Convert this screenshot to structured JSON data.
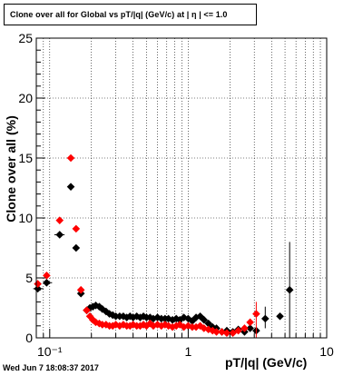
{
  "title": "Clone  over all for Global vs pT/|q| (GeV/c) at |  η | <= 1.0",
  "timestamp": "Wed Jun  7 18:08:37 2017",
  "colors": {
    "series_black": "#000000",
    "series_red": "#ff0000",
    "grid": "#000000"
  },
  "chart_data": {
    "type": "scatter",
    "title": "Clone  over all for Global vs pT/|q| (GeV/c) at |  η | <= 1.0",
    "xlabel": "pT/|q| (GeV/c)",
    "ylabel": "Clone  over all (%)",
    "x_scale": "log",
    "xlim": [
      0.08,
      10
    ],
    "ylim": [
      0,
      25
    ],
    "x_tick_labels": [
      {
        "value": 0.1,
        "label": "10⁻¹"
      },
      {
        "value": 1,
        "label": "1"
      },
      {
        "value": 10,
        "label": "10"
      }
    ],
    "y_tick_labels": [
      "0",
      "5",
      "10",
      "15",
      "20",
      "25"
    ],
    "grid": true,
    "series": [
      {
        "color": "#000000",
        "marker": "diamond",
        "points": [
          [
            0.082,
            4.1
          ],
          [
            0.095,
            4.6
          ],
          [
            0.118,
            8.6
          ],
          [
            0.142,
            12.6
          ],
          [
            0.155,
            7.5
          ],
          [
            0.168,
            3.7
          ],
          [
            0.185,
            2.3
          ],
          [
            0.195,
            2.5
          ],
          [
            0.205,
            2.6
          ],
          [
            0.215,
            2.7
          ],
          [
            0.228,
            2.6
          ],
          [
            0.24,
            2.4
          ],
          [
            0.255,
            2.2
          ],
          [
            0.27,
            2.0
          ],
          [
            0.285,
            1.9
          ],
          [
            0.3,
            1.8
          ],
          [
            0.32,
            1.8
          ],
          [
            0.34,
            1.8
          ],
          [
            0.36,
            1.7
          ],
          [
            0.38,
            1.8
          ],
          [
            0.4,
            1.7
          ],
          [
            0.425,
            1.8
          ],
          [
            0.45,
            1.7
          ],
          [
            0.475,
            1.8
          ],
          [
            0.5,
            1.7
          ],
          [
            0.53,
            1.7
          ],
          [
            0.56,
            1.6
          ],
          [
            0.6,
            1.7
          ],
          [
            0.64,
            1.6
          ],
          [
            0.68,
            1.6
          ],
          [
            0.72,
            1.6
          ],
          [
            0.77,
            1.5
          ],
          [
            0.82,
            1.6
          ],
          [
            0.87,
            1.5
          ],
          [
            0.93,
            1.7
          ],
          [
            1.0,
            1.6
          ],
          [
            1.07,
            1.4
          ],
          [
            1.14,
            1.7
          ],
          [
            1.22,
            1.8
          ],
          [
            1.3,
            1.5
          ],
          [
            1.4,
            1.2
          ],
          [
            1.5,
            0.9
          ],
          [
            1.6,
            0.8
          ],
          [
            1.75,
            0.5
          ],
          [
            1.9,
            0.6
          ],
          [
            2.1,
            0.5
          ],
          [
            2.3,
            0.7
          ],
          [
            2.55,
            0.5
          ],
          [
            2.8,
            0.8
          ],
          [
            3.1,
            0.6
          ],
          [
            3.6,
            1.6
          ],
          [
            4.6,
            1.8
          ],
          [
            5.4,
            4.0
          ]
        ]
      },
      {
        "color": "#ff0000",
        "marker": "diamond",
        "points": [
          [
            0.082,
            4.5
          ],
          [
            0.095,
            5.2
          ],
          [
            0.118,
            9.8
          ],
          [
            0.142,
            15.0
          ],
          [
            0.155,
            9.1
          ],
          [
            0.168,
            4.0
          ],
          [
            0.185,
            2.3
          ],
          [
            0.195,
            1.8
          ],
          [
            0.205,
            1.5
          ],
          [
            0.215,
            1.3
          ],
          [
            0.228,
            1.2
          ],
          [
            0.24,
            1.1
          ],
          [
            0.255,
            1.1
          ],
          [
            0.27,
            1.0
          ],
          [
            0.285,
            1.0
          ],
          [
            0.3,
            1.1
          ],
          [
            0.32,
            1.0
          ],
          [
            0.34,
            1.1
          ],
          [
            0.36,
            1.0
          ],
          [
            0.38,
            1.0
          ],
          [
            0.4,
            1.1
          ],
          [
            0.425,
            1.0
          ],
          [
            0.45,
            1.0
          ],
          [
            0.475,
            1.1
          ],
          [
            0.5,
            1.0
          ],
          [
            0.53,
            1.2
          ],
          [
            0.56,
            1.0
          ],
          [
            0.6,
            1.1
          ],
          [
            0.64,
            1.0
          ],
          [
            0.68,
            1.1
          ],
          [
            0.72,
            1.0
          ],
          [
            0.77,
            0.9
          ],
          [
            0.82,
            1.0
          ],
          [
            0.87,
            1.1
          ],
          [
            0.93,
            0.9
          ],
          [
            1.0,
            1.0
          ],
          [
            1.07,
            0.9
          ],
          [
            1.14,
            0.9
          ],
          [
            1.22,
            1.0
          ],
          [
            1.3,
            0.8
          ],
          [
            1.4,
            0.7
          ],
          [
            1.5,
            0.6
          ],
          [
            1.6,
            0.5
          ],
          [
            1.75,
            0.5
          ],
          [
            1.9,
            0.4
          ],
          [
            2.1,
            0.4
          ],
          [
            2.3,
            0.6
          ],
          [
            2.55,
            0.8
          ],
          [
            2.8,
            1.3
          ],
          [
            3.1,
            2.0
          ]
        ]
      }
    ]
  }
}
